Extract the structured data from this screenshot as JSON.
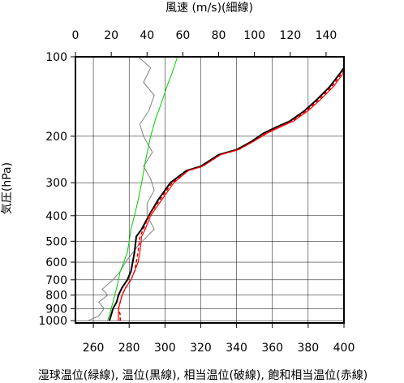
{
  "chart_data": {
    "type": "line",
    "title": "",
    "top_axis_label": "風速 (m/s)(細線)",
    "left_axis_label": "気圧(hPa)",
    "bottom_axis_label": "湿球温位(緑線), 温位(黒線), 相当温位(破線), 飽和相当温位(赤線)",
    "y_scale": "log",
    "y_inverted": true,
    "ylim": [
      1020,
      100
    ],
    "xlim_bottom": [
      250,
      400
    ],
    "xlim_top": [
      0,
      150
    ],
    "grid": true,
    "y_ticks": [
      100,
      200,
      300,
      400,
      500,
      600,
      700,
      800,
      900,
      1000
    ],
    "x_ticks_bottom": [
      260,
      280,
      300,
      320,
      340,
      360,
      380,
      400
    ],
    "x_ticks_top": [
      0,
      20,
      40,
      60,
      80,
      100,
      120,
      140
    ],
    "series": [
      {
        "axis": "top",
        "color": "#808080",
        "style": "solid-thin",
        "points": [
          [
            7,
            1000
          ],
          [
            13,
            960
          ],
          [
            16,
            900
          ],
          [
            13,
            850
          ],
          [
            18,
            800
          ],
          [
            15,
            760
          ],
          [
            21,
            700
          ],
          [
            25,
            650
          ],
          [
            28,
            600
          ],
          [
            35,
            520
          ],
          [
            44,
            450
          ],
          [
            40,
            400
          ],
          [
            40,
            360
          ],
          [
            44,
            320
          ],
          [
            42,
            290
          ],
          [
            38,
            260
          ],
          [
            43,
            230
          ],
          [
            38,
            200
          ],
          [
            36,
            180
          ],
          [
            41,
            160
          ],
          [
            44,
            140
          ],
          [
            38,
            125
          ],
          [
            42,
            110
          ],
          [
            35,
            100
          ]
        ]
      },
      {
        "axis": "bottom",
        "color": "#00cc00",
        "style": "solid-thin",
        "points": [
          [
            268,
            1000
          ],
          [
            269,
            950
          ],
          [
            270,
            900
          ],
          [
            271,
            850
          ],
          [
            272,
            800
          ],
          [
            273,
            750
          ],
          [
            274,
            700
          ],
          [
            275,
            650
          ],
          [
            277,
            600
          ],
          [
            279,
            550
          ],
          [
            280,
            500
          ],
          [
            281,
            450
          ],
          [
            283,
            400
          ],
          [
            285,
            350
          ],
          [
            287,
            300
          ],
          [
            289,
            250
          ],
          [
            292,
            200
          ],
          [
            295,
            170
          ],
          [
            298,
            150
          ],
          [
            301,
            130
          ],
          [
            304,
            115
          ],
          [
            307,
            100
          ]
        ]
      },
      {
        "axis": "bottom",
        "color": "#000000",
        "style": "solid",
        "points": [
          [
            269,
            1000
          ],
          [
            270,
            950
          ],
          [
            271,
            900
          ],
          [
            273,
            850
          ],
          [
            274,
            800
          ],
          [
            276,
            750
          ],
          [
            279,
            700
          ],
          [
            281,
            650
          ],
          [
            282,
            600
          ],
          [
            283,
            550
          ],
          [
            284,
            480
          ],
          [
            287,
            450
          ],
          [
            291,
            400
          ],
          [
            296,
            350
          ],
          [
            303,
            300
          ],
          [
            312,
            270
          ],
          [
            320,
            260
          ],
          [
            330,
            235
          ],
          [
            340,
            225
          ],
          [
            348,
            210
          ],
          [
            355,
            195
          ],
          [
            362,
            185
          ],
          [
            370,
            175
          ],
          [
            378,
            160
          ],
          [
            385,
            145
          ],
          [
            392,
            130
          ],
          [
            398,
            115
          ],
          [
            400,
            110
          ]
        ]
      },
      {
        "axis": "bottom",
        "color": "#cc0000",
        "style": "dashed",
        "points": [
          [
            275,
            1000
          ],
          [
            275,
            950
          ],
          [
            274,
            900
          ],
          [
            275,
            850
          ],
          [
            276,
            800
          ],
          [
            278,
            750
          ],
          [
            281,
            700
          ],
          [
            283,
            650
          ],
          [
            284,
            600
          ],
          [
            285,
            550
          ],
          [
            286,
            480
          ],
          [
            288,
            450
          ],
          [
            291,
            400
          ],
          [
            297,
            350
          ],
          [
            304,
            300
          ],
          [
            313,
            270
          ],
          [
            321,
            260
          ],
          [
            331,
            235
          ],
          [
            341,
            225
          ],
          [
            349,
            210
          ],
          [
            356,
            195
          ],
          [
            363,
            185
          ],
          [
            371,
            175
          ],
          [
            379,
            160
          ],
          [
            386,
            145
          ],
          [
            393,
            130
          ],
          [
            399,
            115
          ],
          [
            400,
            111
          ]
        ]
      },
      {
        "axis": "bottom",
        "color": "#ff0000",
        "style": "solid",
        "points": [
          [
            274,
            1000
          ],
          [
            274,
            950
          ],
          [
            274,
            900
          ],
          [
            275,
            850
          ],
          [
            276,
            800
          ],
          [
            278,
            750
          ],
          [
            281,
            700
          ],
          [
            283,
            650
          ],
          [
            285,
            600
          ],
          [
            286,
            550
          ],
          [
            287,
            480
          ],
          [
            289,
            450
          ],
          [
            292,
            400
          ],
          [
            298,
            350
          ],
          [
            305,
            300
          ],
          [
            313,
            270
          ],
          [
            321,
            260
          ],
          [
            331,
            235
          ],
          [
            341,
            225
          ],
          [
            349,
            210
          ],
          [
            357,
            195
          ],
          [
            364,
            185
          ],
          [
            372,
            175
          ],
          [
            380,
            160
          ],
          [
            387,
            145
          ],
          [
            394,
            130
          ],
          [
            399,
            117
          ],
          [
            400,
            113
          ]
        ]
      }
    ]
  }
}
